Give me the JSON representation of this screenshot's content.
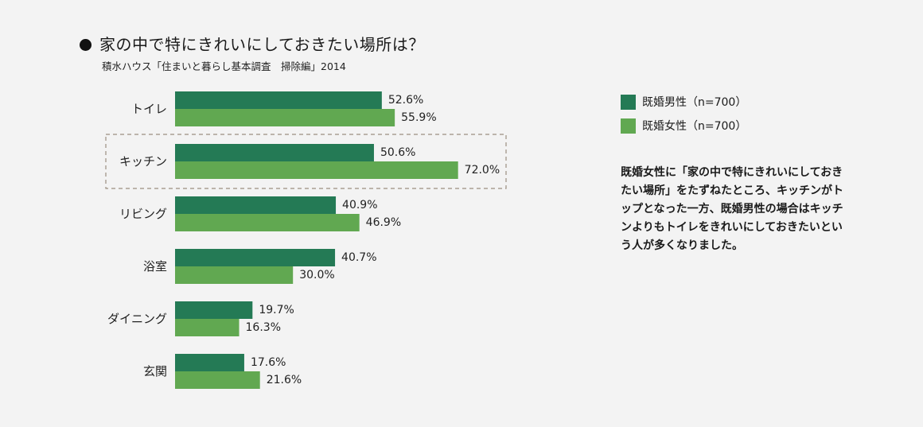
{
  "header": {
    "title": "家の中で特にきれいにしておきたい場所は？",
    "subtitle": "積水ハウス「住まいと暮らし基本調査　掃除編」2014"
  },
  "colors": {
    "male": "#247a55",
    "female": "#61a851",
    "highlight_border": "#9b8f80"
  },
  "chart_data": {
    "type": "bar",
    "orientation": "horizontal",
    "title": "家の中で特にきれいにしておきたい場所は？",
    "categories": [
      "トイレ",
      "キッチン",
      "リビング",
      "浴室",
      "ダイニング",
      "玄関"
    ],
    "series": [
      {
        "name": "既婚男性（n=700）",
        "values": [
          52.6,
          50.6,
          40.9,
          40.7,
          19.7,
          17.6
        ],
        "labels": [
          "52.6%",
          "50.6%",
          "40.9%",
          "40.7%",
          "19.7%",
          "17.6%"
        ]
      },
      {
        "name": "既婚女性（n=700）",
        "values": [
          55.9,
          72.0,
          46.9,
          30.0,
          16.3,
          21.6
        ],
        "labels": [
          "55.9%",
          "72.0%",
          "46.9%",
          "30.0%",
          "16.3%",
          "21.6%"
        ]
      }
    ],
    "highlighted_category": "キッチン",
    "xlim": [
      0,
      100
    ],
    "grid": false,
    "legend_position": "right"
  },
  "legend": {
    "male": "既婚男性（n=700）",
    "female": "既婚女性（n=700）"
  },
  "note": "既婚女性に「家の中で特にきれいにしておきたい場所」をたずねたところ、キッチンがトップとなった一方、既婚男性の場合はキッチンよりもトイレをきれいにしておきたいという人が多くなりました。"
}
